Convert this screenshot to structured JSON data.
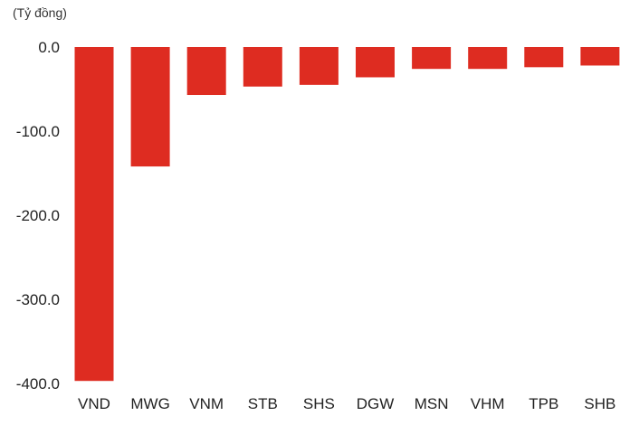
{
  "chart_data": {
    "type": "bar",
    "unit_label": "(Tỷ đồng)",
    "categories": [
      "VND",
      "MWG",
      "VNM",
      "STB",
      "SHS",
      "DGW",
      "MSN",
      "VHM",
      "TPB",
      "SHB"
    ],
    "values": [
      -397.0,
      -142.0,
      -57.0,
      -47.0,
      -45.0,
      -36.0,
      -26.0,
      -26.0,
      -24.0,
      -22.0
    ],
    "y_ticks": [
      "0.0",
      "-100.0",
      "-200.0",
      "-300.0",
      "-400.0"
    ],
    "ylim": [
      -400,
      0
    ],
    "grid": false,
    "legend": "none",
    "bar_color": "#de2c21"
  }
}
